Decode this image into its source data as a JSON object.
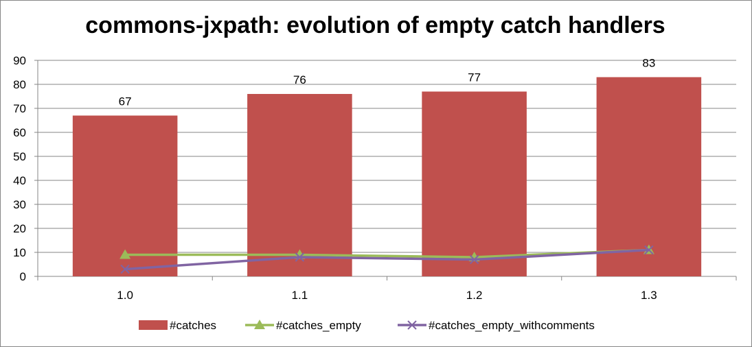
{
  "chart_data": {
    "type": "bar",
    "title": "commons-jxpath: evolution of empty catch handlers",
    "categories": [
      "1.0",
      "1.1",
      "1.2",
      "1.3"
    ],
    "ylim": [
      0,
      90
    ],
    "yticks": [
      0,
      10,
      20,
      30,
      40,
      50,
      60,
      70,
      80,
      90
    ],
    "grid": true,
    "legend_position": "bottom",
    "series": [
      {
        "name": "#catches",
        "type": "bar",
        "color": "#c0504d",
        "values": [
          67,
          76,
          77,
          83
        ],
        "data_labels": true
      },
      {
        "name": "#catches_empty",
        "type": "line",
        "marker": "triangle",
        "color": "#9bbb59",
        "values": [
          9,
          9,
          8,
          11
        ],
        "data_labels": false
      },
      {
        "name": "#catches_empty_withcomments",
        "type": "line",
        "marker": "x",
        "color": "#8064a2",
        "values": [
          3,
          8,
          7,
          11
        ],
        "data_labels": false
      }
    ]
  }
}
